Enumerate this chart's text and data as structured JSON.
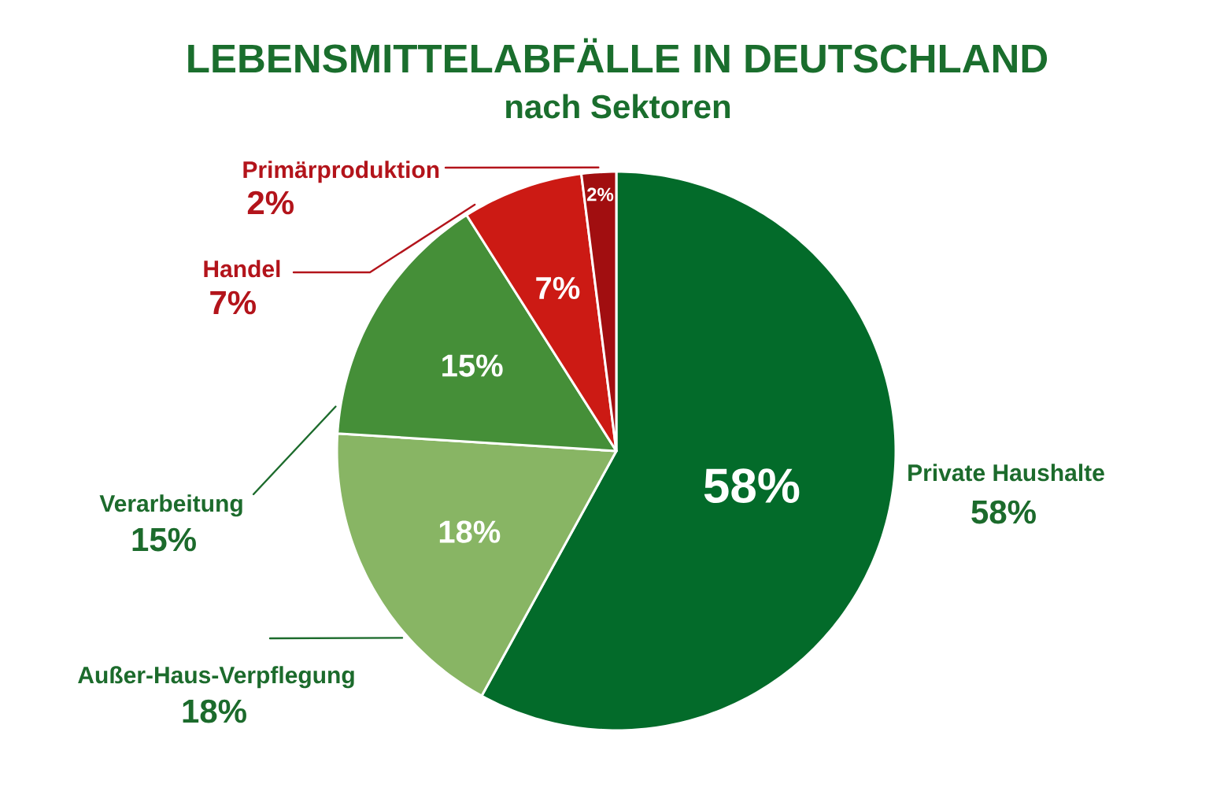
{
  "chart_data": {
    "type": "pie",
    "title": "LEBENSMITTELABFÄLLE IN DEUTSCHLAND",
    "subtitle": "nach Sektoren",
    "categories": [
      "Private Haushalte",
      "Außer-Haus-Verpflegung",
      "Verarbeitung",
      "Handel",
      "Primärproduktion"
    ],
    "values": [
      58,
      18,
      15,
      7,
      2
    ],
    "colors": [
      "#036b2a",
      "#88b564",
      "#458f38",
      "#cc1a14",
      "#a10e10"
    ],
    "value_labels": [
      "58%",
      "18%",
      "15%",
      "7%",
      "2%"
    ]
  }
}
